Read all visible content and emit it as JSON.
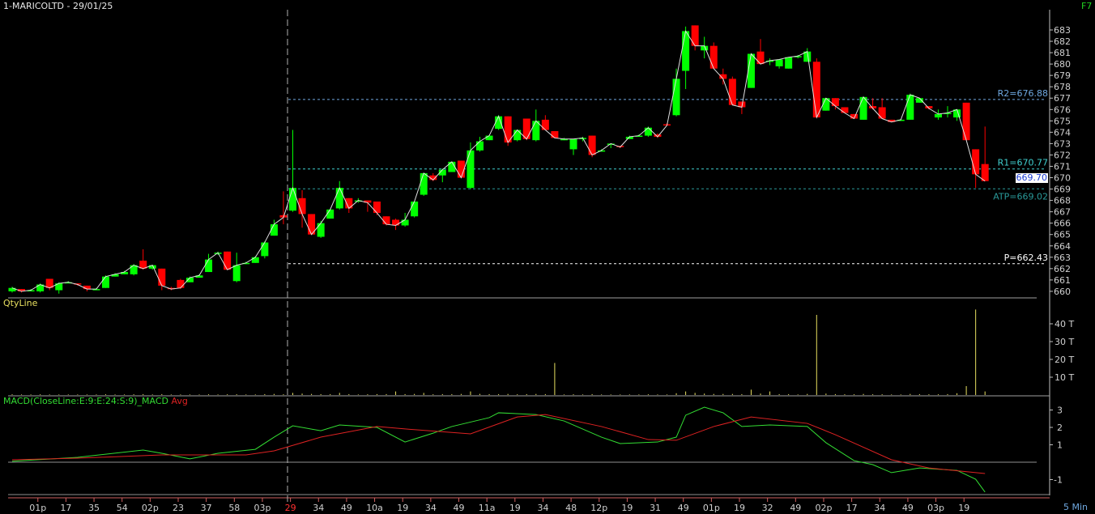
{
  "header": {
    "title": "1-MARICOLTD - 29/01/25",
    "shortcut": "F7",
    "interval": "5 Min"
  },
  "colors": {
    "up": "#00ff00",
    "down": "#ff0000",
    "close_line": "#e0e0e0",
    "r2": "#6fa8e0",
    "r1": "#40d0d0",
    "atp": "#2a9a9a",
    "pivot": "#ffffff",
    "volume": "#e8e060",
    "macd": "#33dd33",
    "avg": "#dd2222"
  },
  "chart_data": [
    {
      "type": "candlestick",
      "title": "",
      "ylim": [
        660,
        683
      ],
      "yticks": [
        660,
        661,
        662,
        663,
        664,
        665,
        666,
        667,
        668,
        669,
        670,
        671,
        672,
        673,
        674,
        675,
        676,
        677,
        678,
        679,
        680,
        681,
        682,
        683
      ],
      "xticks": [
        "01p",
        "17",
        "35",
        "54",
        "02p",
        "23",
        "37",
        "58",
        "03p",
        "29",
        "34",
        "49",
        "10a",
        "19",
        "34",
        "49",
        "11a",
        "19",
        "34",
        "48",
        "12p",
        "19",
        "31",
        "49",
        "01p",
        "19",
        "32",
        "49",
        "02p",
        "17",
        "34",
        "49",
        "03p",
        "19"
      ],
      "day_break_label": "29",
      "levels": [
        {
          "label": "R2=676.88",
          "value": 676.88
        },
        {
          "label": "R1=670.77",
          "value": 670.77
        },
        {
          "label": "ATP=669.02",
          "value": 669.02
        },
        {
          "label": "P=662.43",
          "value": 662.43
        }
      ],
      "last_price": "669.70",
      "ohlc": [
        [
          660.0,
          660.4,
          659.9,
          660.3
        ],
        [
          660.2,
          660.2,
          659.9,
          660.0
        ],
        [
          660.0,
          660.2,
          660.0,
          660.1
        ],
        [
          660.0,
          660.7,
          659.9,
          660.6
        ],
        [
          661.1,
          661.1,
          660.1,
          660.3
        ],
        [
          660.1,
          660.8,
          659.8,
          660.7
        ],
        [
          660.7,
          660.9,
          660.7,
          660.8
        ],
        [
          660.7,
          660.7,
          660.5,
          660.6
        ],
        [
          660.5,
          660.5,
          660.0,
          660.2
        ],
        [
          660.2,
          660.3,
          660.1,
          660.2
        ],
        [
          660.3,
          661.4,
          660.3,
          661.3
        ],
        [
          661.3,
          661.6,
          661.3,
          661.5
        ],
        [
          661.5,
          661.8,
          661.5,
          661.7
        ],
        [
          661.5,
          662.4,
          661.4,
          662.3
        ],
        [
          662.7,
          663.7,
          661.9,
          662.0
        ],
        [
          662.0,
          662.3,
          661.9,
          662.3
        ],
        [
          662.0,
          662.0,
          660.1,
          660.5
        ],
        [
          660.3,
          660.4,
          660.1,
          660.2
        ],
        [
          661.0,
          661.1,
          660.2,
          660.3
        ],
        [
          660.8,
          661.3,
          660.8,
          661.2
        ],
        [
          661.2,
          661.5,
          661.2,
          661.4
        ],
        [
          661.7,
          663.3,
          661.7,
          662.8
        ],
        [
          663.3,
          663.5,
          663.2,
          663.4
        ],
        [
          663.5,
          663.5,
          661.9,
          661.9
        ],
        [
          660.9,
          663.4,
          660.8,
          662.3
        ],
        [
          662.4,
          662.6,
          662.4,
          662.5
        ],
        [
          662.5,
          663.1,
          662.5,
          663.0
        ],
        [
          663.1,
          664.4,
          662.9,
          664.3
        ],
        [
          664.9,
          666.3,
          664.9,
          665.9
        ],
        [
          666.7,
          668.8,
          665.9,
          666.5
        ],
        [
          667.1,
          674.2,
          667.0,
          669.1
        ],
        [
          668.2,
          668.9,
          665.6,
          666.8
        ],
        [
          666.8,
          666.8,
          665.0,
          665.0
        ],
        [
          664.8,
          666.2,
          664.7,
          666.0
        ],
        [
          666.4,
          667.2,
          666.4,
          667.2
        ],
        [
          667.3,
          669.7,
          667.2,
          669.1
        ],
        [
          668.2,
          668.2,
          666.9,
          667.3
        ],
        [
          668.0,
          668.2,
          667.8,
          668.0
        ],
        [
          668.0,
          668.0,
          667.0,
          667.8
        ],
        [
          667.9,
          667.9,
          666.7,
          666.9
        ],
        [
          666.6,
          666.6,
          665.8,
          665.9
        ],
        [
          666.3,
          666.4,
          665.4,
          665.8
        ],
        [
          665.8,
          666.9,
          665.7,
          666.3
        ],
        [
          666.6,
          667.9,
          666.5,
          667.9
        ],
        [
          668.5,
          670.4,
          668.4,
          670.4
        ],
        [
          670.2,
          670.4,
          669.7,
          669.8
        ],
        [
          670.2,
          670.8,
          669.6,
          670.7
        ],
        [
          670.5,
          671.4,
          670.5,
          671.4
        ],
        [
          671.5,
          671.5,
          670.0,
          670.0
        ],
        [
          669.1,
          673.1,
          669.0,
          672.4
        ],
        [
          672.4,
          673.6,
          672.3,
          673.2
        ],
        [
          673.3,
          673.7,
          673.3,
          673.7
        ],
        [
          674.3,
          675.5,
          674.2,
          675.4
        ],
        [
          675.4,
          675.4,
          672.8,
          673.1
        ],
        [
          673.3,
          674.2,
          673.2,
          674.2
        ],
        [
          675.2,
          675.2,
          673.3,
          673.4
        ],
        [
          673.3,
          676.0,
          673.2,
          675.0
        ],
        [
          675.1,
          675.5,
          674.2,
          674.2
        ],
        [
          674.1,
          674.1,
          673.5,
          673.5
        ],
        [
          673.4,
          673.5,
          673.3,
          673.4
        ],
        [
          672.5,
          673.4,
          672.0,
          673.4
        ],
        [
          673.5,
          673.6,
          673.2,
          673.5
        ],
        [
          673.7,
          673.7,
          671.8,
          672.0
        ],
        [
          672.3,
          672.5,
          672.3,
          672.4
        ],
        [
          673.0,
          673.0,
          672.6,
          673.0
        ],
        [
          672.8,
          672.8,
          672.6,
          672.7
        ],
        [
          673.4,
          673.7,
          673.4,
          673.6
        ],
        [
          673.6,
          673.8,
          673.6,
          673.7
        ],
        [
          673.7,
          674.5,
          673.6,
          674.4
        ],
        [
          673.8,
          673.9,
          673.5,
          673.6
        ],
        [
          674.7,
          674.8,
          674.6,
          674.6
        ],
        [
          675.5,
          679.6,
          675.4,
          678.7
        ],
        [
          679.4,
          683.3,
          677.8,
          682.9
        ],
        [
          683.4,
          683.4,
          681.2,
          681.6
        ],
        [
          681.2,
          682.4,
          680.5,
          681.6
        ],
        [
          681.6,
          681.9,
          679.6,
          679.6
        ],
        [
          679.1,
          679.6,
          678.2,
          678.7
        ],
        [
          678.7,
          678.9,
          676.4,
          676.4
        ],
        [
          676.7,
          676.7,
          675.6,
          676.2
        ],
        [
          677.9,
          680.9,
          677.9,
          680.9
        ],
        [
          681.1,
          682.2,
          680.0,
          680.0
        ],
        [
          680.2,
          680.5,
          679.9,
          680.3
        ],
        [
          679.8,
          680.4,
          679.6,
          680.4
        ],
        [
          679.6,
          680.6,
          679.6,
          680.6
        ],
        [
          680.6,
          680.8,
          680.5,
          680.7
        ],
        [
          680.2,
          681.4,
          680.2,
          681.1
        ],
        [
          680.2,
          680.5,
          675.3,
          675.3
        ],
        [
          675.9,
          677.0,
          675.9,
          677.0
        ],
        [
          677.0,
          677.0,
          676.0,
          676.3
        ],
        [
          676.2,
          676.2,
          675.7,
          675.7
        ],
        [
          675.6,
          675.6,
          675.2,
          675.2
        ],
        [
          675.1,
          677.1,
          675.1,
          677.1
        ],
        [
          676.3,
          677.0,
          676.0,
          676.1
        ],
        [
          676.2,
          677.0,
          675.2,
          675.2
        ],
        [
          675.1,
          675.1,
          674.9,
          674.9
        ],
        [
          675.0,
          675.1,
          675.0,
          675.1
        ],
        [
          675.1,
          677.4,
          675.1,
          677.3
        ],
        [
          676.6,
          677.0,
          676.6,
          677.0
        ],
        [
          676.3,
          676.3,
          676.0,
          676.1
        ],
        [
          675.3,
          676.0,
          675.1,
          675.6
        ],
        [
          675.6,
          676.3,
          675.3,
          675.7
        ],
        [
          675.3,
          676.0,
          675.0,
          676.0
        ],
        [
          676.6,
          676.6,
          673.3,
          673.3
        ],
        [
          672.5,
          672.5,
          669.1,
          670.3
        ],
        [
          671.2,
          674.5,
          669.7,
          669.7
        ]
      ]
    },
    {
      "type": "bar",
      "title": "QtyLine",
      "unit": "T",
      "ylim": [
        0,
        50
      ],
      "yticks": [
        "10 T",
        "20 T",
        "30 T",
        "40 T"
      ],
      "values": [
        0.4,
        0.3,
        0.3,
        0.4,
        0.3,
        0.3,
        0.3,
        0.3,
        0.3,
        0.3,
        0.4,
        0.3,
        0.3,
        0.4,
        0.5,
        0.3,
        0.5,
        0.3,
        0.3,
        0.3,
        0.3,
        0.4,
        0.3,
        0.4,
        0.4,
        0.3,
        0.3,
        0.5,
        0.6,
        0.4,
        1.2,
        0.8,
        0.6,
        0.5,
        0.5,
        1.2,
        0.5,
        0.3,
        0.4,
        0.5,
        0.5,
        2.0,
        0.5,
        0.6,
        1.2,
        0.4,
        0.5,
        0.5,
        0.6,
        2.0,
        0.6,
        0.5,
        0.5,
        0.6,
        0.4,
        0.5,
        0.6,
        0.5,
        18,
        0.3,
        0.4,
        0.3,
        0.5,
        0.3,
        0.3,
        0.3,
        0.3,
        0.3,
        0.4,
        0.3,
        0.3,
        1.0,
        2.0,
        1.2,
        0.8,
        0.6,
        0.6,
        0.6,
        0.5,
        3.0,
        0.8,
        2.0,
        0.5,
        0.5,
        0.3,
        0.6,
        45,
        0.8,
        0.5,
        0.4,
        0.4,
        0.6,
        0.4,
        0.4,
        0.3,
        0.3,
        0.6,
        0.5,
        0.4,
        0.4,
        0.5,
        1.0,
        5.0,
        48,
        2.0
      ]
    },
    {
      "type": "line",
      "title": "MACD(CloseLine:E:9:E:24:S:9)_MACD",
      "avg_label": "Avg",
      "ylim": [
        -1.8,
        3.3
      ],
      "yticks": [
        "3",
        "2",
        "1",
        "-1"
      ],
      "series": [
        {
          "name": "MACD",
          "points": [
            [
              0,
              0.05
            ],
            [
              7,
              0.28
            ],
            [
              14,
              0.7
            ],
            [
              16,
              0.51
            ],
            [
              19,
              0.19
            ],
            [
              22,
              0.51
            ],
            [
              26,
              0.74
            ],
            [
              28,
              1.44
            ],
            [
              30,
              2.09
            ],
            [
              33,
              1.81
            ],
            [
              35,
              2.14
            ],
            [
              39,
              2.0
            ],
            [
              42,
              1.16
            ],
            [
              45,
              1.67
            ],
            [
              47,
              2.05
            ],
            [
              51,
              2.56
            ],
            [
              52,
              2.84
            ],
            [
              56,
              2.74
            ],
            [
              59,
              2.37
            ],
            [
              63,
              1.44
            ],
            [
              65,
              1.07
            ],
            [
              69,
              1.16
            ],
            [
              71,
              1.44
            ],
            [
              72,
              2.7
            ],
            [
              74,
              3.16
            ],
            [
              76,
              2.84
            ],
            [
              78,
              2.05
            ],
            [
              81,
              2.14
            ],
            [
              85,
              2.05
            ],
            [
              87,
              1.12
            ],
            [
              90,
              0.09
            ],
            [
              92,
              -0.14
            ],
            [
              94,
              -0.6
            ],
            [
              97,
              -0.33
            ],
            [
              101,
              -0.47
            ],
            [
              103,
              -0.98
            ],
            [
              104,
              -1.72
            ]
          ]
        },
        {
          "name": "Avg",
          "points": [
            [
              0,
              0.14
            ],
            [
              7,
              0.23
            ],
            [
              16,
              0.42
            ],
            [
              25,
              0.42
            ],
            [
              28,
              0.65
            ],
            [
              33,
              1.44
            ],
            [
              39,
              2.05
            ],
            [
              42,
              1.91
            ],
            [
              49,
              1.63
            ],
            [
              54,
              2.6
            ],
            [
              57,
              2.74
            ],
            [
              63,
              2.05
            ],
            [
              68,
              1.3
            ],
            [
              71,
              1.26
            ],
            [
              75,
              2.05
            ],
            [
              79,
              2.6
            ],
            [
              85,
              2.23
            ],
            [
              88,
              1.58
            ],
            [
              94,
              0.14
            ],
            [
              98,
              -0.33
            ],
            [
              104,
              -0.65
            ]
          ]
        }
      ]
    }
  ]
}
